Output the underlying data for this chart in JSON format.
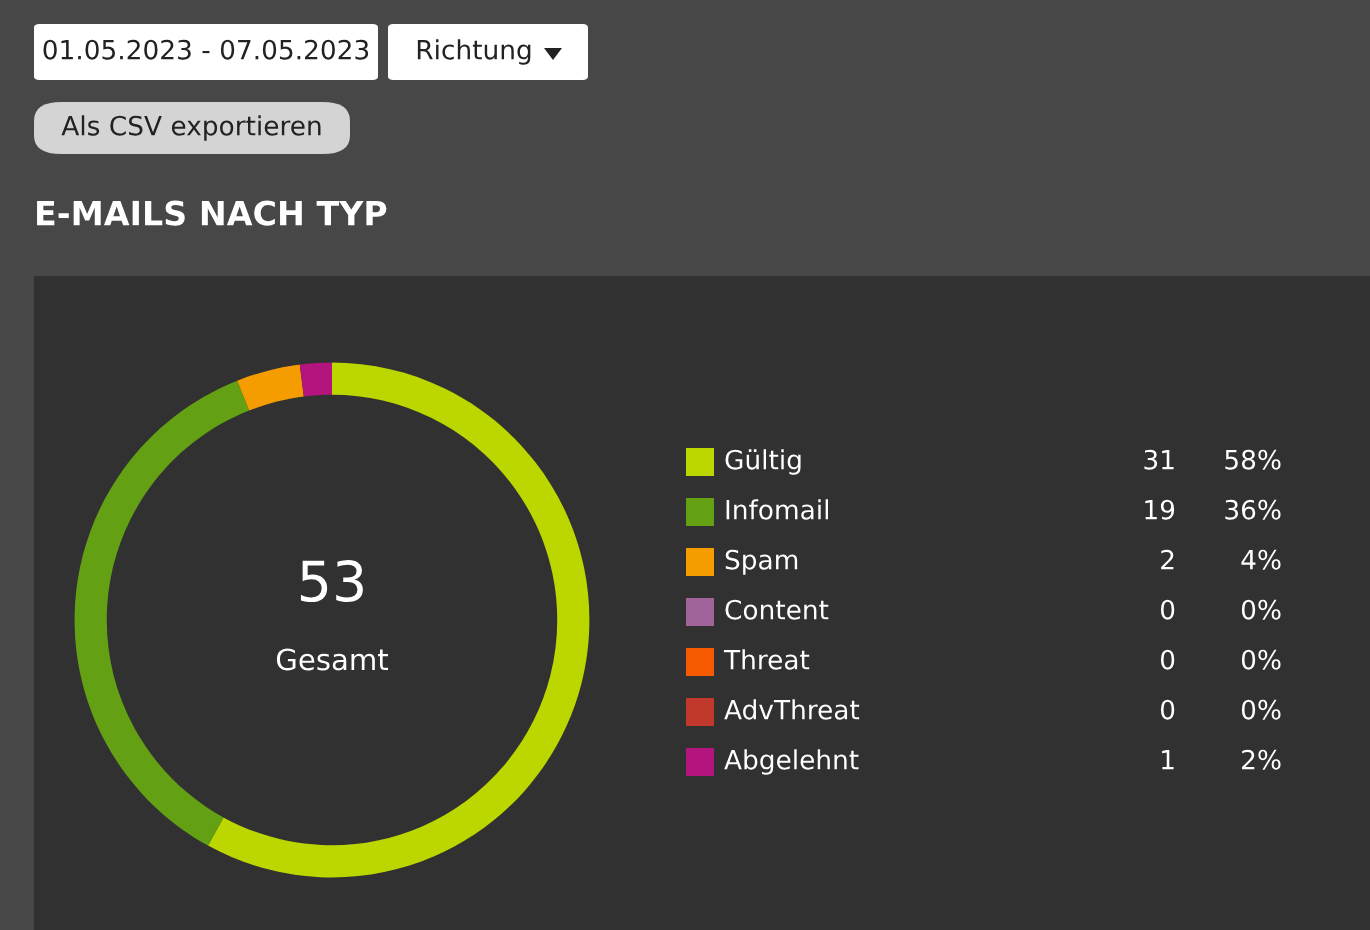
{
  "chart_data": {
    "type": "donut",
    "title": "E-MAILS NACH TYP",
    "categories": [
      "Gültig",
      "Infomail",
      "Spam",
      "Content",
      "Threat",
      "AdvThreat",
      "Abgelehnt"
    ],
    "values": [
      58,
      36,
      4,
      0,
      0,
      0,
      2
    ],
    "colors": [
      "#bcd600",
      "#64a014",
      "#f59c00",
      "#a0649b",
      "#f55a00",
      "#c0392b",
      "#b4147d"
    ],
    "value_labels": [
      "58%",
      "36%",
      "4%",
      "0%",
      "0%",
      "0%",
      "2%"
    ],
    "legend": "right",
    "annotations": [
      "01.05.2023 - 07.05.2023",
      "Richtung",
      "Als CSV exportieren",
      "53",
      "Gesamt",
      {
        "text": "31",
        "x": "Gültig"
      },
      {
        "text": "19",
        "x": "Infomail"
      },
      {
        "text": "2",
        "x": "Spam"
      },
      {
        "text": "0",
        "x": "Content"
      },
      {
        "text": "0",
        "x": "Threat"
      },
      {
        "text": "0",
        "x": "AdvThreat"
      },
      {
        "text": "1",
        "x": "Abgelehnt"
      }
    ]
  }
}
